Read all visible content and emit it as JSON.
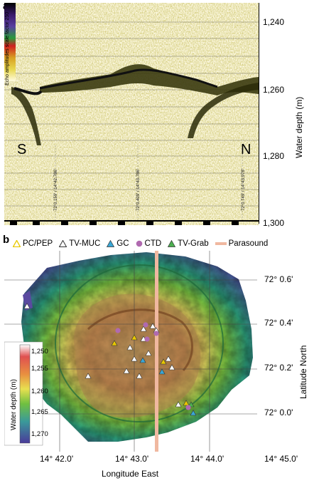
{
  "panel_a": {
    "label": "a",
    "scale_caption": "Echo amplitudes scale factor 250",
    "depth_ticks": [
      "1,240",
      "1,260",
      "1,280",
      "1,300"
    ],
    "axis_title": "Water depth (m)",
    "south": "S",
    "north": "N",
    "coord_labels": [
      "72°0.159' / 14°42.786'",
      "72°0.409' / 14°43.786'",
      "72°0.749' / 14°43.978'"
    ]
  },
  "panel_b": {
    "label": "b",
    "legend": [
      {
        "name": "PC/PEP",
        "color": "#e8c800",
        "shape": "triangle-open"
      },
      {
        "name": "TV-MUC",
        "color": "#ffffff",
        "shape": "triangle-open"
      },
      {
        "name": "GC",
        "color": "#3aa7d6",
        "shape": "triangle"
      },
      {
        "name": "CTD",
        "color": "#b06ab0",
        "shape": "circle"
      },
      {
        "name": "TV-Grab",
        "color": "#4caf50",
        "shape": "triangle"
      },
      {
        "name": "Parasound",
        "color": "#f0b8a0",
        "shape": "bar"
      }
    ],
    "lat_ticks": [
      "72° 0.6'",
      "72° 0.4'",
      "72° 0.2'",
      "72° 0.0'"
    ],
    "lon_ticks": [
      "14° 42.0'",
      "14° 43.0'",
      "14° 44.0'",
      "14° 45.0'"
    ],
    "lat_title": "Latitude North",
    "lon_title": "Longitude East",
    "colorbar_title": "Water depth (m)",
    "colorbar_ticks": [
      "1,250",
      "1,255",
      "1,260",
      "1,265",
      "1,270"
    ]
  }
}
